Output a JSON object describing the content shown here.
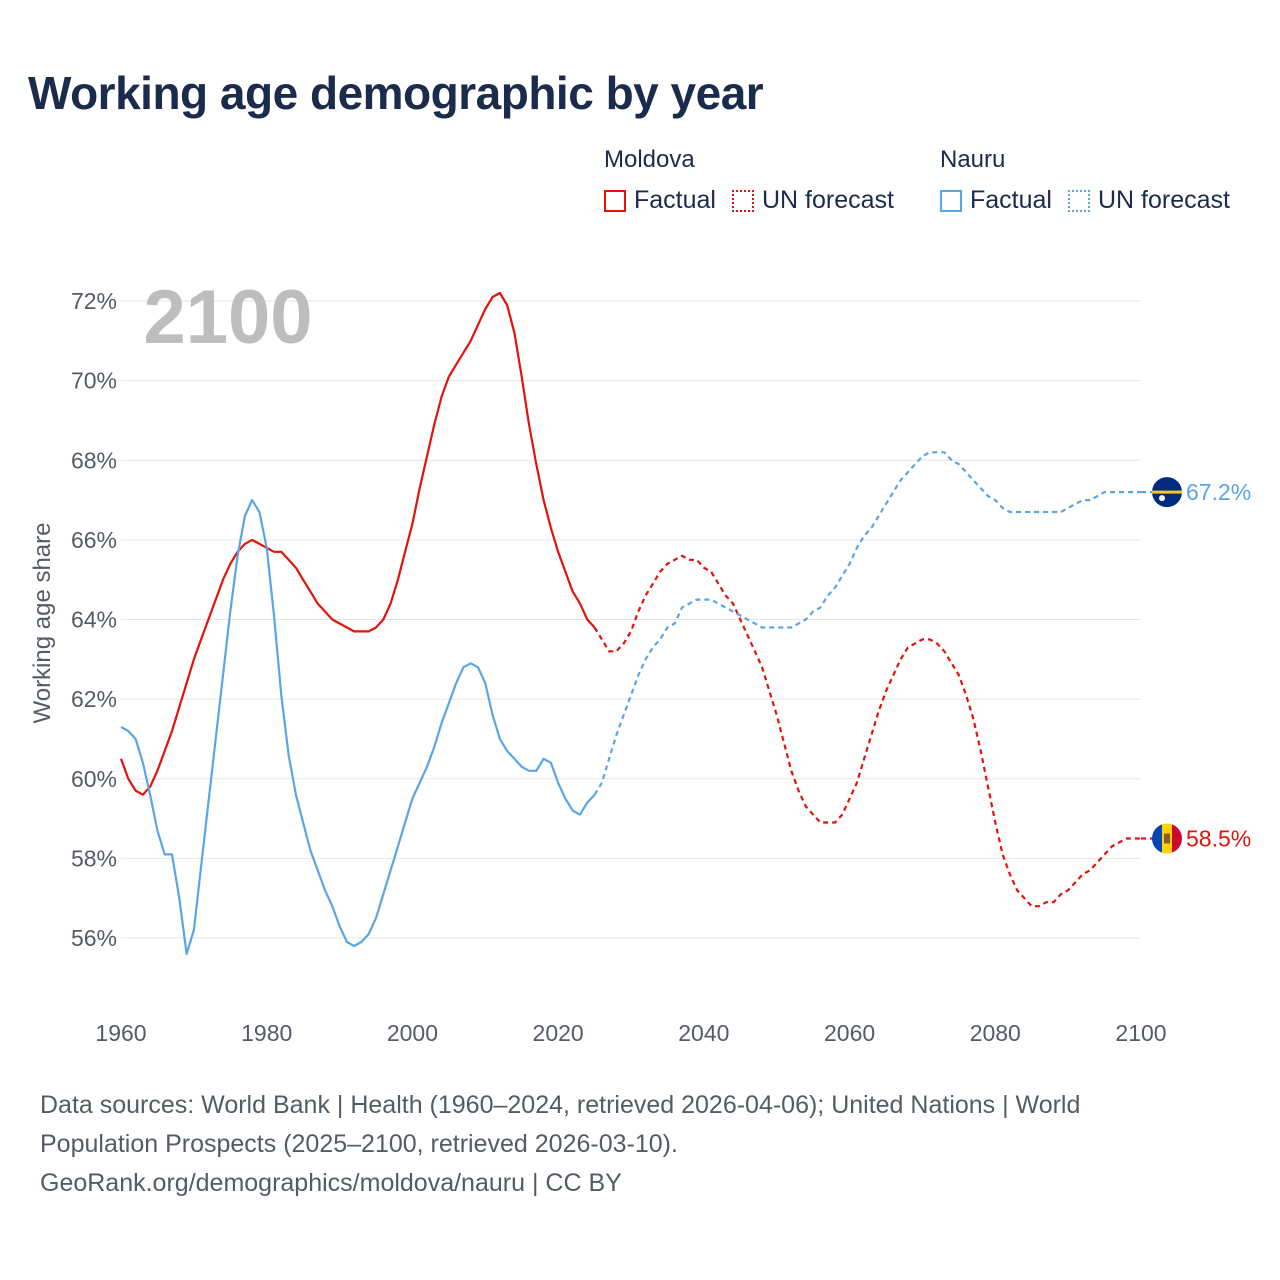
{
  "title": "Working age demographic by year",
  "legend": {
    "groups": [
      {
        "name": "Moldova",
        "color": "#e3120b",
        "factual_label": "Factual",
        "forecast_label": "UN forecast"
      },
      {
        "name": "Nauru",
        "color": "#5aa5e6",
        "factual_label": "Factual",
        "forecast_label": "UN forecast"
      }
    ]
  },
  "chart_data": {
    "type": "line",
    "year_watermark": "2100",
    "ylabel": "Working age share",
    "xlim": [
      1960,
      2100
    ],
    "ylim": [
      55,
      73
    ],
    "xticks": [
      1960,
      1980,
      2000,
      2020,
      2040,
      2060,
      2080,
      2100
    ],
    "yticks": [
      56,
      58,
      60,
      62,
      64,
      66,
      68,
      70,
      72
    ],
    "ytick_labels": [
      "56%",
      "58%",
      "60%",
      "62%",
      "64%",
      "66%",
      "68%",
      "70%",
      "72%"
    ],
    "series": [
      {
        "name": "Moldova",
        "color": "#e3120b",
        "end_label": "58.5%",
        "factual": [
          [
            1960,
            60.5
          ],
          [
            1961,
            60.0
          ],
          [
            1962,
            59.7
          ],
          [
            1963,
            59.6
          ],
          [
            1964,
            59.8
          ],
          [
            1965,
            60.2
          ],
          [
            1966,
            60.7
          ],
          [
            1967,
            61.2
          ],
          [
            1968,
            61.8
          ],
          [
            1969,
            62.4
          ],
          [
            1970,
            63.0
          ],
          [
            1971,
            63.5
          ],
          [
            1972,
            64.0
          ],
          [
            1973,
            64.5
          ],
          [
            1974,
            65.0
          ],
          [
            1975,
            65.4
          ],
          [
            1976,
            65.7
          ],
          [
            1977,
            65.9
          ],
          [
            1978,
            66.0
          ],
          [
            1979,
            65.9
          ],
          [
            1980,
            65.8
          ],
          [
            1981,
            65.7
          ],
          [
            1982,
            65.7
          ],
          [
            1983,
            65.5
          ],
          [
            1984,
            65.3
          ],
          [
            1985,
            65.0
          ],
          [
            1986,
            64.7
          ],
          [
            1987,
            64.4
          ],
          [
            1988,
            64.2
          ],
          [
            1989,
            64.0
          ],
          [
            1990,
            63.9
          ],
          [
            1991,
            63.8
          ],
          [
            1992,
            63.7
          ],
          [
            1993,
            63.7
          ],
          [
            1994,
            63.7
          ],
          [
            1995,
            63.8
          ],
          [
            1996,
            64.0
          ],
          [
            1997,
            64.4
          ],
          [
            1998,
            65.0
          ],
          [
            1999,
            65.7
          ],
          [
            2000,
            66.4
          ],
          [
            2001,
            67.3
          ],
          [
            2002,
            68.1
          ],
          [
            2003,
            68.9
          ],
          [
            2004,
            69.6
          ],
          [
            2005,
            70.1
          ],
          [
            2006,
            70.4
          ],
          [
            2007,
            70.7
          ],
          [
            2008,
            71.0
          ],
          [
            2009,
            71.4
          ],
          [
            2010,
            71.8
          ],
          [
            2011,
            72.1
          ],
          [
            2012,
            72.2
          ],
          [
            2013,
            71.9
          ],
          [
            2014,
            71.2
          ],
          [
            2015,
            70.1
          ],
          [
            2016,
            68.9
          ],
          [
            2017,
            67.9
          ],
          [
            2018,
            67.0
          ],
          [
            2019,
            66.3
          ],
          [
            2020,
            65.7
          ],
          [
            2021,
            65.2
          ],
          [
            2022,
            64.7
          ],
          [
            2023,
            64.4
          ],
          [
            2024,
            64.0
          ],
          [
            2025,
            63.8
          ]
        ],
        "forecast": [
          [
            2025,
            63.8
          ],
          [
            2026,
            63.5
          ],
          [
            2027,
            63.2
          ],
          [
            2028,
            63.2
          ],
          [
            2029,
            63.4
          ],
          [
            2030,
            63.7
          ],
          [
            2031,
            64.2
          ],
          [
            2032,
            64.6
          ],
          [
            2033,
            64.9
          ],
          [
            2034,
            65.2
          ],
          [
            2035,
            65.4
          ],
          [
            2036,
            65.5
          ],
          [
            2037,
            65.6
          ],
          [
            2038,
            65.5
          ],
          [
            2039,
            65.5
          ],
          [
            2040,
            65.3
          ],
          [
            2041,
            65.2
          ],
          [
            2042,
            64.9
          ],
          [
            2043,
            64.6
          ],
          [
            2044,
            64.4
          ],
          [
            2045,
            64.0
          ],
          [
            2046,
            63.6
          ],
          [
            2047,
            63.2
          ],
          [
            2048,
            62.8
          ],
          [
            2049,
            62.2
          ],
          [
            2050,
            61.6
          ],
          [
            2051,
            60.9
          ],
          [
            2052,
            60.2
          ],
          [
            2053,
            59.7
          ],
          [
            2054,
            59.3
          ],
          [
            2055,
            59.1
          ],
          [
            2056,
            58.9
          ],
          [
            2057,
            58.9
          ],
          [
            2058,
            58.9
          ],
          [
            2059,
            59.1
          ],
          [
            2060,
            59.5
          ],
          [
            2061,
            59.9
          ],
          [
            2062,
            60.5
          ],
          [
            2063,
            61.1
          ],
          [
            2064,
            61.7
          ],
          [
            2065,
            62.2
          ],
          [
            2066,
            62.6
          ],
          [
            2067,
            63.0
          ],
          [
            2068,
            63.3
          ],
          [
            2069,
            63.4
          ],
          [
            2070,
            63.5
          ],
          [
            2071,
            63.5
          ],
          [
            2072,
            63.4
          ],
          [
            2073,
            63.2
          ],
          [
            2074,
            62.9
          ],
          [
            2075,
            62.6
          ],
          [
            2076,
            62.1
          ],
          [
            2077,
            61.5
          ],
          [
            2078,
            60.7
          ],
          [
            2079,
            59.8
          ],
          [
            2080,
            58.9
          ],
          [
            2081,
            58.1
          ],
          [
            2082,
            57.6
          ],
          [
            2083,
            57.2
          ],
          [
            2084,
            57.0
          ],
          [
            2085,
            56.8
          ],
          [
            2086,
            56.8
          ],
          [
            2087,
            56.9
          ],
          [
            2088,
            56.9
          ],
          [
            2089,
            57.1
          ],
          [
            2090,
            57.2
          ],
          [
            2091,
            57.4
          ],
          [
            2092,
            57.6
          ],
          [
            2093,
            57.7
          ],
          [
            2094,
            57.9
          ],
          [
            2095,
            58.1
          ],
          [
            2096,
            58.3
          ],
          [
            2097,
            58.4
          ],
          [
            2098,
            58.5
          ],
          [
            2099,
            58.5
          ],
          [
            2100,
            58.5
          ]
        ]
      },
      {
        "name": "Nauru",
        "color": "#5aa5e6",
        "end_label": "67.2%",
        "factual": [
          [
            1960,
            61.3
          ],
          [
            1961,
            61.2
          ],
          [
            1962,
            61.0
          ],
          [
            1963,
            60.4
          ],
          [
            1964,
            59.6
          ],
          [
            1965,
            58.7
          ],
          [
            1966,
            58.1
          ],
          [
            1967,
            58.1
          ],
          [
            1968,
            57.0
          ],
          [
            1969,
            55.6
          ],
          [
            1970,
            56.2
          ],
          [
            1971,
            57.8
          ],
          [
            1972,
            59.4
          ],
          [
            1973,
            61.0
          ],
          [
            1974,
            62.6
          ],
          [
            1975,
            64.2
          ],
          [
            1976,
            65.6
          ],
          [
            1977,
            66.6
          ],
          [
            1978,
            67.0
          ],
          [
            1979,
            66.7
          ],
          [
            1980,
            65.8
          ],
          [
            1981,
            64.1
          ],
          [
            1982,
            62.1
          ],
          [
            1983,
            60.6
          ],
          [
            1984,
            59.6
          ],
          [
            1985,
            58.9
          ],
          [
            1986,
            58.2
          ],
          [
            1987,
            57.7
          ],
          [
            1988,
            57.2
          ],
          [
            1989,
            56.8
          ],
          [
            1990,
            56.3
          ],
          [
            1991,
            55.9
          ],
          [
            1992,
            55.8
          ],
          [
            1993,
            55.9
          ],
          [
            1994,
            56.1
          ],
          [
            1995,
            56.5
          ],
          [
            1996,
            57.1
          ],
          [
            1997,
            57.7
          ],
          [
            1998,
            58.3
          ],
          [
            1999,
            58.9
          ],
          [
            2000,
            59.5
          ],
          [
            2001,
            59.9
          ],
          [
            2002,
            60.3
          ],
          [
            2003,
            60.8
          ],
          [
            2004,
            61.4
          ],
          [
            2005,
            61.9
          ],
          [
            2006,
            62.4
          ],
          [
            2007,
            62.8
          ],
          [
            2008,
            62.9
          ],
          [
            2009,
            62.8
          ],
          [
            2010,
            62.4
          ],
          [
            2011,
            61.6
          ],
          [
            2012,
            61.0
          ],
          [
            2013,
            60.7
          ],
          [
            2014,
            60.5
          ],
          [
            2015,
            60.3
          ],
          [
            2016,
            60.2
          ],
          [
            2017,
            60.2
          ],
          [
            2018,
            60.5
          ],
          [
            2019,
            60.4
          ],
          [
            2020,
            59.9
          ],
          [
            2021,
            59.5
          ],
          [
            2022,
            59.2
          ],
          [
            2023,
            59.1
          ],
          [
            2024,
            59.4
          ],
          [
            2025,
            59.6
          ]
        ],
        "forecast": [
          [
            2025,
            59.6
          ],
          [
            2026,
            59.9
          ],
          [
            2027,
            60.5
          ],
          [
            2028,
            61.1
          ],
          [
            2029,
            61.6
          ],
          [
            2030,
            62.1
          ],
          [
            2031,
            62.6
          ],
          [
            2032,
            63.0
          ],
          [
            2033,
            63.3
          ],
          [
            2034,
            63.5
          ],
          [
            2035,
            63.8
          ],
          [
            2036,
            63.9
          ],
          [
            2037,
            64.3
          ],
          [
            2038,
            64.4
          ],
          [
            2039,
            64.5
          ],
          [
            2040,
            64.5
          ],
          [
            2041,
            64.5
          ],
          [
            2042,
            64.4
          ],
          [
            2043,
            64.3
          ],
          [
            2044,
            64.2
          ],
          [
            2045,
            64.1
          ],
          [
            2046,
            64.0
          ],
          [
            2047,
            63.9
          ],
          [
            2048,
            63.8
          ],
          [
            2049,
            63.8
          ],
          [
            2050,
            63.8
          ],
          [
            2051,
            63.8
          ],
          [
            2052,
            63.8
          ],
          [
            2053,
            63.9
          ],
          [
            2054,
            64.0
          ],
          [
            2055,
            64.2
          ],
          [
            2056,
            64.3
          ],
          [
            2057,
            64.6
          ],
          [
            2058,
            64.8
          ],
          [
            2059,
            65.1
          ],
          [
            2060,
            65.4
          ],
          [
            2061,
            65.8
          ],
          [
            2062,
            66.1
          ],
          [
            2063,
            66.3
          ],
          [
            2064,
            66.6
          ],
          [
            2065,
            66.9
          ],
          [
            2066,
            67.2
          ],
          [
            2067,
            67.5
          ],
          [
            2068,
            67.7
          ],
          [
            2069,
            67.9
          ],
          [
            2070,
            68.1
          ],
          [
            2071,
            68.2
          ],
          [
            2072,
            68.2
          ],
          [
            2073,
            68.2
          ],
          [
            2074,
            68.0
          ],
          [
            2075,
            67.9
          ],
          [
            2076,
            67.7
          ],
          [
            2077,
            67.5
          ],
          [
            2078,
            67.3
          ],
          [
            2079,
            67.1
          ],
          [
            2080,
            67.0
          ],
          [
            2081,
            66.8
          ],
          [
            2082,
            66.7
          ],
          [
            2083,
            66.7
          ],
          [
            2084,
            66.7
          ],
          [
            2085,
            66.7
          ],
          [
            2086,
            66.7
          ],
          [
            2087,
            66.7
          ],
          [
            2088,
            66.7
          ],
          [
            2089,
            66.7
          ],
          [
            2090,
            66.8
          ],
          [
            2091,
            66.9
          ],
          [
            2092,
            67.0
          ],
          [
            2093,
            67.0
          ],
          [
            2094,
            67.1
          ],
          [
            2095,
            67.2
          ],
          [
            2096,
            67.2
          ],
          [
            2097,
            67.2
          ],
          [
            2098,
            67.2
          ],
          [
            2099,
            67.2
          ],
          [
            2100,
            67.2
          ]
        ]
      }
    ]
  },
  "footer": {
    "line1": "Data sources: World Bank | Health (1960–2024, retrieved 2026-04-06); United Nations | World",
    "line2": "Population Prospects (2025–2100, retrieved 2026-03-10).",
    "line3": "GeoRank.org/demographics/moldova/nauru | CC BY"
  }
}
